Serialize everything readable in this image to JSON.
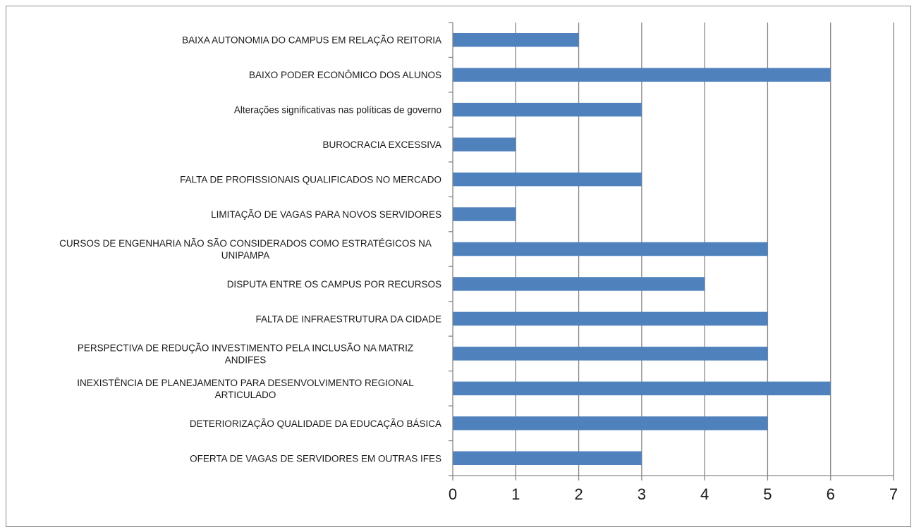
{
  "chart_data": {
    "type": "bar",
    "orientation": "horizontal",
    "title": "",
    "xlabel": "",
    "ylabel": "",
    "categories": [
      "BAIXA AUTONOMIA DO CAMPUS EM RELAÇÃO REITORIA",
      "BAIXO PODER ECONÔMICO DOS ALUNOS",
      "Alterações significativas nas políticas de governo",
      "BUROCRACIA EXCESSIVA",
      "FALTA DE PROFISSIONAIS QUALIFICADOS NO MERCADO",
      "LIMITAÇÃO DE VAGAS PARA NOVOS SERVIDORES",
      "CURSOS DE ENGENHARIA NÃO SÃO CONSIDERADOS COMO ESTRATÉGICOS NA UNIPAMPA",
      "DISPUTA ENTRE OS CAMPUS POR RECURSOS",
      "FALTA DE INFRAESTRUTURA DA CIDADE",
      "PERSPECTIVA DE REDUÇÃO INVESTIMENTO PELA INCLUSÃO NA MATRIZ ANDIFES",
      "INEXISTÊNCIA DE PLANEJAMENTO PARA DESENVOLVIMENTO REGIONAL ARTICULADO",
      "DETERIORIZAÇÃO QUALIDADE DA EDUCAÇÃO BÁSICA",
      "OFERTA DE VAGAS DE SERVIDORES EM OUTRAS IFES"
    ],
    "category_lines": [
      [
        "BAIXA AUTONOMIA DO CAMPUS EM RELAÇÃO REITORIA"
      ],
      [
        "BAIXO PODER ECONÔMICO DOS ALUNOS"
      ],
      [
        "Alterações significativas nas políticas de governo"
      ],
      [
        "BUROCRACIA EXCESSIVA"
      ],
      [
        "FALTA DE PROFISSIONAIS QUALIFICADOS NO MERCADO"
      ],
      [
        "LIMITAÇÃO DE VAGAS PARA NOVOS SERVIDORES"
      ],
      [
        "CURSOS DE ENGENHARIA NÃO SÃO CONSIDERADOS COMO ESTRATÉGICOS NA",
        "UNIPAMPA"
      ],
      [
        "DISPUTA ENTRE OS CAMPUS POR RECURSOS"
      ],
      [
        "FALTA DE INFRAESTRUTURA DA CIDADE"
      ],
      [
        "PERSPECTIVA DE REDUÇÃO INVESTIMENTO PELA INCLUSÃO NA MATRIZ",
        "ANDIFES"
      ],
      [
        "INEXISTÊNCIA DE PLANEJAMENTO PARA DESENVOLVIMENTO REGIONAL",
        "ARTICULADO"
      ],
      [
        "DETERIORIZAÇÃO QUALIDADE DA EDUCAÇÃO BÁSICA"
      ],
      [
        "OFERTA DE VAGAS DE SERVIDORES EM OUTRAS IFES"
      ]
    ],
    "values": [
      2,
      6,
      3,
      1,
      3,
      1,
      5,
      4,
      5,
      5,
      6,
      5,
      3
    ],
    "xlim": [
      0,
      7
    ],
    "xticks": [
      0,
      1,
      2,
      3,
      4,
      5,
      6,
      7
    ],
    "grid": "vertical",
    "legend": "none",
    "bar_color": "#4f81bd",
    "grid_color": "#868686",
    "axis_color": "#868686"
  }
}
